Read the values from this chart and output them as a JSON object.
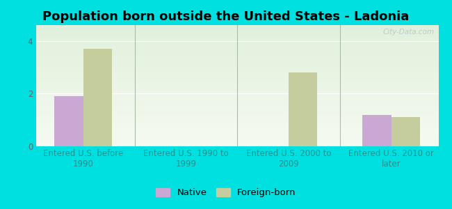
{
  "title": "Population born outside the United States - Ladonia",
  "categories": [
    "Entered U.S. before\n1990",
    "Entered U.S. 1990 to\n1999",
    "Entered U.S. 2000 to\n2009",
    "Entered U.S. 2010 or\nlater"
  ],
  "native_values": [
    1.9,
    0,
    0,
    1.2
  ],
  "foreign_values": [
    3.7,
    0,
    2.8,
    1.1
  ],
  "native_color": "#c9a8d4",
  "foreign_color": "#c5cc9e",
  "background_outer": "#00e0e0",
  "ylim": [
    0,
    4.6
  ],
  "yticks": [
    0,
    2,
    4
  ],
  "bar_width": 0.28,
  "legend_native": "Native",
  "legend_foreign": "Foreign-born",
  "title_fontsize": 13,
  "tick_fontsize": 8.5,
  "legend_fontsize": 9.5,
  "xtick_color": "#2a9090",
  "ytick_color": "#666666",
  "grid_color": "#ffffff",
  "divider_color": "#aabbaa",
  "watermark_color": "#bbcccc"
}
